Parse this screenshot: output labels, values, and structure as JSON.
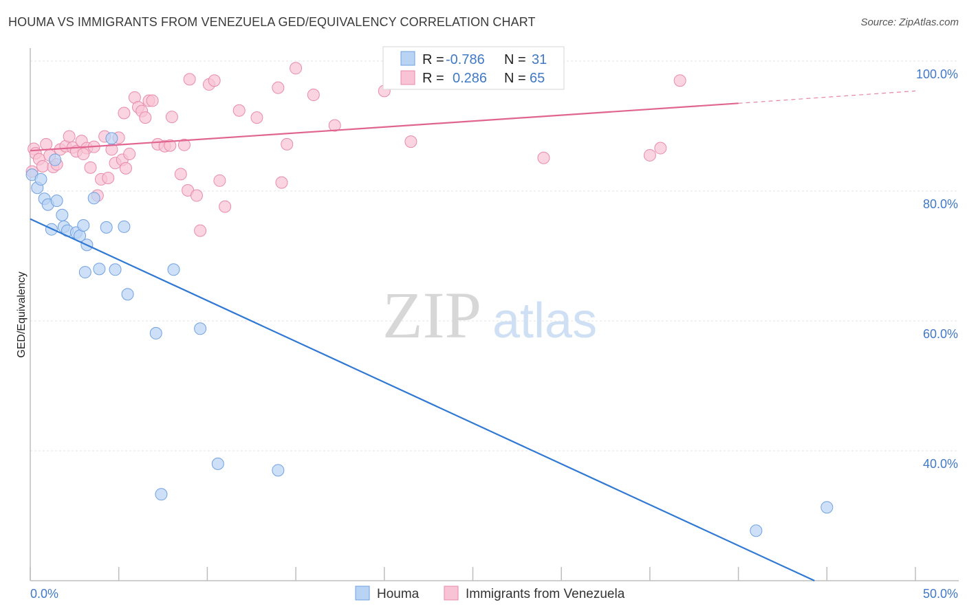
{
  "title": "HOUMA VS IMMIGRANTS FROM VENEZUELA GED/EQUIVALENCY CORRELATION CHART",
  "source": "Source: ZipAtlas.com",
  "watermark": {
    "zip": "ZIP",
    "atlas": "atlas"
  },
  "colors": {
    "houma_fill": "#b9d3f5",
    "houma_stroke": "#6fa0e0",
    "houma_line": "#2f78d4",
    "ven_fill": "#f8c3d4",
    "ven_stroke": "#e98aaa",
    "ven_line": "#e0648f",
    "tick_label": "#3f79c6",
    "grid": "#e3e3e3"
  },
  "legend": {
    "r_label": "R =",
    "n_label": "N =",
    "rows": [
      {
        "series": "Houma",
        "r": "-0.786",
        "n": "31"
      },
      {
        "series": "Immigrants from Venezuela",
        "r": "0.286",
        "n": "65"
      }
    ]
  },
  "chart_data": {
    "type": "scatter",
    "title": "HOUMA VS IMMIGRANTS FROM VENEZUELA GED/EQUIVALENCY CORRELATION CHART",
    "xlabel": "",
    "ylabel": "GED/Equivalency",
    "xlim": [
      0,
      50
    ],
    "ylim": [
      20,
      102
    ],
    "x_tick_labels": [
      "0.0%",
      "50.0%"
    ],
    "y_ticks": [
      40,
      60,
      80,
      100
    ],
    "y_tick_labels": [
      "40.0%",
      "60.0%",
      "80.0%",
      "100.0%"
    ],
    "grid": true,
    "legend_position": "top-center",
    "series": [
      {
        "name": "Houma",
        "r": -0.786,
        "n": 31,
        "trend": {
          "x": [
            0,
            44.3
          ],
          "y": [
            75.7,
            20.0
          ]
        },
        "points": [
          [
            0.1,
            82.5
          ],
          [
            0.4,
            80.5
          ],
          [
            0.6,
            81.8
          ],
          [
            0.8,
            78.8
          ],
          [
            1.0,
            77.9
          ],
          [
            1.2,
            74.1
          ],
          [
            1.5,
            78.5
          ],
          [
            1.4,
            84.8
          ],
          [
            1.8,
            76.3
          ],
          [
            1.9,
            74.5
          ],
          [
            2.1,
            73.9
          ],
          [
            2.6,
            73.6
          ],
          [
            2.8,
            73.1
          ],
          [
            3.0,
            74.7
          ],
          [
            3.2,
            71.7
          ],
          [
            3.1,
            67.5
          ],
          [
            3.6,
            78.9
          ],
          [
            3.9,
            68.0
          ],
          [
            4.3,
            74.4
          ],
          [
            4.6,
            88.1
          ],
          [
            4.8,
            67.9
          ],
          [
            5.3,
            74.5
          ],
          [
            5.5,
            64.1
          ],
          [
            7.1,
            58.1
          ],
          [
            7.4,
            33.3
          ],
          [
            8.1,
            67.9
          ],
          [
            9.6,
            58.8
          ],
          [
            10.6,
            38.0
          ],
          [
            14.0,
            37.0
          ],
          [
            41.0,
            27.7
          ],
          [
            45.0,
            31.3
          ]
        ]
      },
      {
        "name": "Immigrants from Venezuela",
        "r": 0.286,
        "n": 65,
        "trend": {
          "x": [
            0,
            40
          ],
          "y": [
            86.2,
            93.5
          ]
        },
        "trend_dashed": {
          "x": [
            40,
            50
          ],
          "y": [
            93.5,
            95.4
          ]
        },
        "points": [
          [
            0.2,
            86.5
          ],
          [
            0.3,
            85.8
          ],
          [
            0.5,
            84.9
          ],
          [
            0.7,
            83.8
          ],
          [
            0.9,
            87.2
          ],
          [
            1.1,
            85.5
          ],
          [
            1.3,
            83.7
          ],
          [
            1.5,
            84.1
          ],
          [
            1.7,
            86.4
          ],
          [
            2.0,
            86.9
          ],
          [
            2.2,
            88.4
          ],
          [
            2.4,
            86.7
          ],
          [
            2.6,
            86.1
          ],
          [
            2.9,
            87.7
          ],
          [
            3.2,
            86.6
          ],
          [
            3.0,
            85.7
          ],
          [
            3.4,
            83.6
          ],
          [
            3.6,
            86.8
          ],
          [
            3.8,
            79.3
          ],
          [
            4.0,
            81.8
          ],
          [
            4.2,
            88.4
          ],
          [
            4.4,
            82.0
          ],
          [
            4.6,
            86.4
          ],
          [
            4.8,
            84.3
          ],
          [
            5.0,
            88.2
          ],
          [
            5.2,
            84.8
          ],
          [
            5.4,
            83.5
          ],
          [
            5.6,
            85.7
          ],
          [
            5.3,
            92.0
          ],
          [
            5.9,
            94.4
          ],
          [
            6.1,
            92.9
          ],
          [
            6.3,
            92.3
          ],
          [
            6.5,
            91.3
          ],
          [
            6.7,
            93.9
          ],
          [
            6.9,
            93.9
          ],
          [
            7.2,
            87.2
          ],
          [
            7.6,
            86.9
          ],
          [
            7.9,
            87.0
          ],
          [
            8.0,
            91.4
          ],
          [
            8.5,
            82.6
          ],
          [
            8.7,
            87.1
          ],
          [
            8.9,
            80.1
          ],
          [
            9.0,
            97.2
          ],
          [
            9.4,
            79.3
          ],
          [
            9.6,
            73.9
          ],
          [
            10.1,
            96.4
          ],
          [
            10.4,
            97.0
          ],
          [
            10.7,
            81.6
          ],
          [
            11.0,
            77.6
          ],
          [
            11.8,
            92.4
          ],
          [
            12.8,
            91.3
          ],
          [
            14.0,
            95.9
          ],
          [
            14.2,
            81.3
          ],
          [
            14.5,
            87.2
          ],
          [
            15.0,
            98.9
          ],
          [
            16.0,
            94.8
          ],
          [
            17.2,
            90.1
          ],
          [
            20.0,
            95.4
          ],
          [
            20.5,
            100.2
          ],
          [
            21.5,
            87.6
          ],
          [
            29.0,
            85.1
          ],
          [
            35.0,
            85.5
          ],
          [
            35.6,
            86.6
          ],
          [
            36.7,
            97.0
          ],
          [
            0.1,
            83.0
          ]
        ]
      }
    ]
  }
}
